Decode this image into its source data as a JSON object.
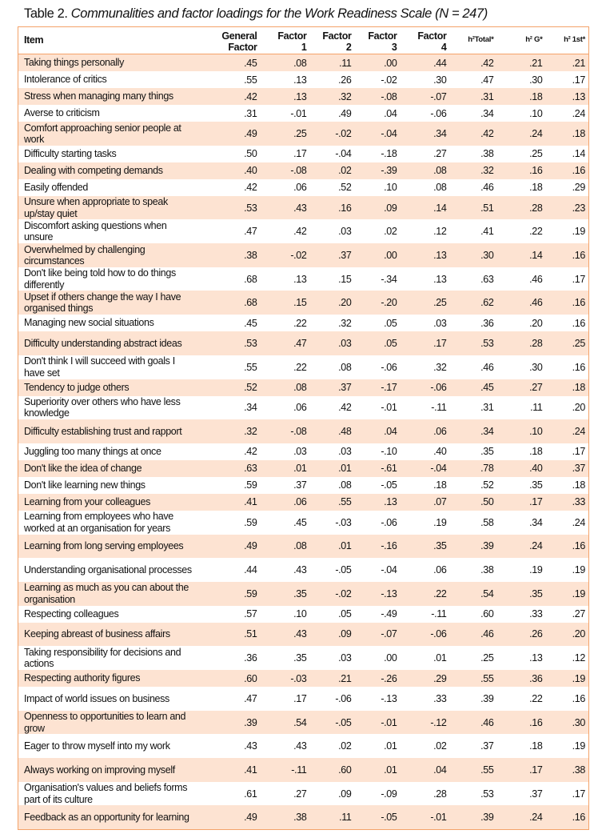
{
  "title": {
    "prefix": "Table 2. ",
    "italic": "Communalities and factor loadings for the Work Readiness Scale (N = 247)"
  },
  "columns": [
    "Item",
    "General Factor",
    "Factor 1",
    "Factor 2",
    "Factor 3",
    "Factor 4",
    "h²Total*",
    "h² G*",
    "h² 1st*"
  ],
  "colors": {
    "border": "#f4a36a",
    "stripe": "#fde3d2"
  },
  "rows": [
    [
      "Taking things personally",
      ".45",
      ".08",
      ".11",
      ".00",
      ".44",
      ".42",
      ".21",
      ".21"
    ],
    [
      "Intolerance of critics",
      ".55",
      ".13",
      ".26",
      "-.02",
      ".30",
      ".47",
      ".30",
      ".17"
    ],
    [
      "Stress when managing many things",
      ".42",
      ".13",
      ".32",
      "-.08",
      "-.07",
      ".31",
      ".18",
      ".13"
    ],
    [
      "Averse to criticism",
      ".31",
      "-.01",
      ".49",
      ".04",
      "-.06",
      ".34",
      ".10",
      ".24"
    ],
    [
      "Comfort approaching senior people at work",
      ".49",
      ".25",
      "-.02",
      "-.04",
      ".34",
      ".42",
      ".24",
      ".18"
    ],
    [
      "Difficulty starting tasks",
      ".50",
      ".17",
      "-.04",
      "-.18",
      ".27",
      ".38",
      ".25",
      ".14"
    ],
    [
      "Dealing with competing demands",
      ".40",
      "-.08",
      ".02",
      "-.39",
      ".08",
      ".32",
      ".16",
      ".16"
    ],
    [
      "Easily offended",
      ".42",
      ".06",
      ".52",
      ".10",
      ".08",
      ".46",
      ".18",
      ".29"
    ],
    [
      "Unsure when appropriate to speak up/stay quiet",
      ".53",
      ".43",
      ".16",
      ".09",
      ".14",
      ".51",
      ".28",
      ".23"
    ],
    [
      "Discomfort asking questions when unsure",
      ".47",
      ".42",
      ".03",
      ".02",
      ".12",
      ".41",
      ".22",
      ".19"
    ],
    [
      "Overwhelmed by challenging circumstances",
      ".38",
      "-.02",
      ".37",
      ".00",
      ".13",
      ".30",
      ".14",
      ".16"
    ],
    [
      "Don't like being told how to do things differently",
      ".68",
      ".13",
      ".15",
      "-.34",
      ".13",
      ".63",
      ".46",
      ".17"
    ],
    [
      "Upset if others change the way I have organised things",
      ".68",
      ".15",
      ".20",
      "-.20",
      ".25",
      ".62",
      ".46",
      ".16"
    ],
    [
      "Managing new social situations",
      ".45",
      ".22",
      ".32",
      ".05",
      ".03",
      ".36",
      ".20",
      ".16"
    ],
    [
      "Difficulty understanding abstract ideas",
      ".53",
      ".47",
      ".03",
      ".05",
      ".17",
      ".53",
      ".28",
      ".25"
    ],
    [
      "Don't think I will succeed with goals I have set",
      ".55",
      ".22",
      ".08",
      "-.06",
      ".32",
      ".46",
      ".30",
      ".16"
    ],
    [
      "Tendency to judge others",
      ".52",
      ".08",
      ".37",
      "-.17",
      "-.06",
      ".45",
      ".27",
      ".18"
    ],
    [
      "Superiority over others who have less knowledge",
      ".34",
      ".06",
      ".42",
      "-.01",
      "-.11",
      ".31",
      ".11",
      ".20"
    ],
    [
      "Difficulty establishing trust and rapport",
      ".32",
      "-.08",
      ".48",
      ".04",
      ".06",
      ".34",
      ".10",
      ".24"
    ],
    [
      "Juggling too many things at once",
      ".42",
      ".03",
      ".03",
      "-.10",
      ".40",
      ".35",
      ".18",
      ".17"
    ],
    [
      "Don't like the idea of change",
      ".63",
      ".01",
      ".01",
      "-.61",
      "-.04",
      ".78",
      ".40",
      ".37"
    ],
    [
      "Don't like learning new things",
      ".59",
      ".37",
      ".08",
      "-.05",
      ".18",
      ".52",
      ".35",
      ".18"
    ],
    [
      "Learning from your colleagues",
      ".41",
      ".06",
      ".55",
      ".13",
      ".07",
      ".50",
      ".17",
      ".33"
    ],
    [
      "Learning from employees who have worked at an organisation for years",
      ".59",
      ".45",
      "-.03",
      "-.06",
      ".19",
      ".58",
      ".34",
      ".24"
    ],
    [
      "Learning from long serving employees",
      ".49",
      ".08",
      ".01",
      "-.16",
      ".35",
      ".39",
      ".24",
      ".16"
    ],
    [
      "Understanding organisational processes",
      ".44",
      ".43",
      "-.05",
      "-.04",
      ".06",
      ".38",
      ".19",
      ".19"
    ],
    [
      "Learning as much as you can about the organisation",
      ".59",
      ".35",
      "-.02",
      "-.13",
      ".22",
      ".54",
      ".35",
      ".19"
    ],
    [
      "Respecting colleagues",
      ".57",
      ".10",
      ".05",
      "-.49",
      "-.11",
      ".60",
      ".33",
      ".27"
    ],
    [
      "Keeping abreast of business affairs",
      ".51",
      ".43",
      ".09",
      "-.07",
      "-.06",
      ".46",
      ".26",
      ".20"
    ],
    [
      "Taking  responsibility for decisions and actions",
      ".36",
      ".35",
      ".03",
      ".00",
      ".01",
      ".25",
      ".13",
      ".12"
    ],
    [
      "Respecting authority figures",
      ".60",
      "-.03",
      ".21",
      "-.26",
      ".29",
      ".55",
      ".36",
      ".19"
    ],
    [
      "Impact of world issues on business",
      ".47",
      ".17",
      "-.06",
      "-.13",
      ".33",
      ".39",
      ".22",
      ".16"
    ],
    [
      "Openness to opportunities to learn and grow",
      ".39",
      ".54",
      "-.05",
      "-.01",
      "-.12",
      ".46",
      ".16",
      ".30"
    ],
    [
      "Eager to throw myself into my work",
      ".43",
      ".43",
      ".02",
      ".01",
      ".02",
      ".37",
      ".18",
      ".19"
    ],
    [
      "Always working on improving myself",
      ".41",
      "-.11",
      ".60",
      ".01",
      ".04",
      ".55",
      ".17",
      ".38"
    ],
    [
      "Organisation's values and beliefs forms part of its culture",
      ".61",
      ".27",
      ".09",
      "-.09",
      ".28",
      ".53",
      ".37",
      ".17"
    ],
    [
      "Feedback as an opportunity for learning",
      ".49",
      ".38",
      ".11",
      "-.05",
      "-.01",
      ".39",
      ".24",
      ".16"
    ]
  ]
}
